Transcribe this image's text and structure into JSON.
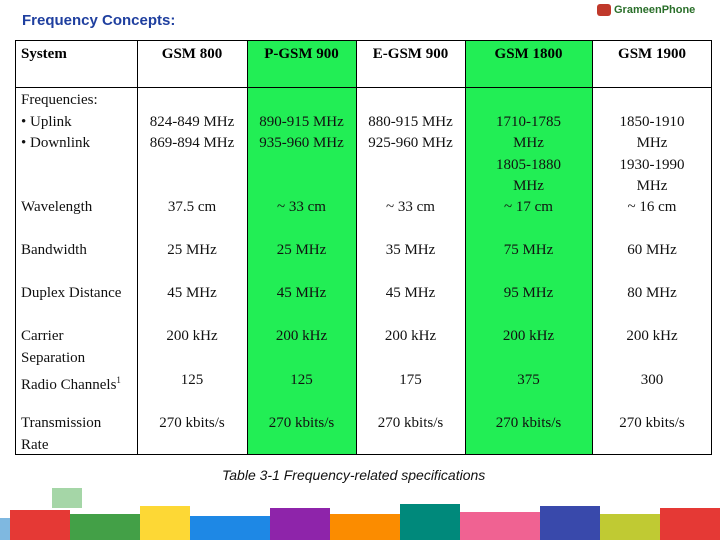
{
  "header": {
    "title": "Frequency Concepts:",
    "logo": "GrameenPhone"
  },
  "table": {
    "columns": [
      "System",
      "GSM 800",
      "P-GSM 900",
      "E-GSM 900",
      "GSM 1800",
      "GSM 1900"
    ],
    "rows": [
      {
        "label": [
          "Frequencies:",
          "• Uplink",
          "• Downlink"
        ],
        "cells": [
          [
            "824-849 MHz",
            "869-894 MHz"
          ],
          [
            "890-915 MHz",
            "935-960 MHz"
          ],
          [
            "880-915 MHz",
            "925-960 MHz"
          ],
          [
            "1710-1785",
            "MHz",
            "1805-1880",
            "MHz"
          ],
          [
            "1850-1910",
            "MHz",
            "1930-1990",
            "MHz"
          ]
        ]
      },
      {
        "label": [
          "Wavelength"
        ],
        "cells": [
          [
            "37.5 cm"
          ],
          [
            "~ 33 cm"
          ],
          [
            "~ 33 cm"
          ],
          [
            "~ 17 cm"
          ],
          [
            "~ 16 cm"
          ]
        ]
      },
      {
        "label": [
          "Bandwidth"
        ],
        "cells": [
          [
            "25 MHz"
          ],
          [
            "25 MHz"
          ],
          [
            "35 MHz"
          ],
          [
            "75 MHz"
          ],
          [
            "60 MHz"
          ]
        ]
      },
      {
        "label": [
          "Duplex Distance"
        ],
        "cells": [
          [
            "45 MHz"
          ],
          [
            "45 MHz"
          ],
          [
            "45 MHz"
          ],
          [
            "95 MHz"
          ],
          [
            "80 MHz"
          ]
        ]
      },
      {
        "label": [
          "Carrier",
          "Separation"
        ],
        "cells": [
          [
            "200 kHz"
          ],
          [
            "200 kHz"
          ],
          [
            "200 kHz"
          ],
          [
            "200 kHz"
          ],
          [
            "200 kHz"
          ]
        ]
      },
      {
        "label": [
          "Radio Channels"
        ],
        "footnote": "1",
        "cells": [
          [
            "125"
          ],
          [
            "125"
          ],
          [
            "175"
          ],
          [
            "375"
          ],
          [
            "300"
          ]
        ]
      },
      {
        "label": [
          "Transmission",
          "Rate"
        ],
        "cells": [
          [
            "270 kbits/s"
          ],
          [
            "270 kbits/s"
          ],
          [
            "270 kbits/s"
          ],
          [
            "270 kbits/s"
          ],
          [
            "270 kbits/s"
          ]
        ]
      }
    ]
  },
  "caption": "Table 3-1 Frequency-related specifications"
}
